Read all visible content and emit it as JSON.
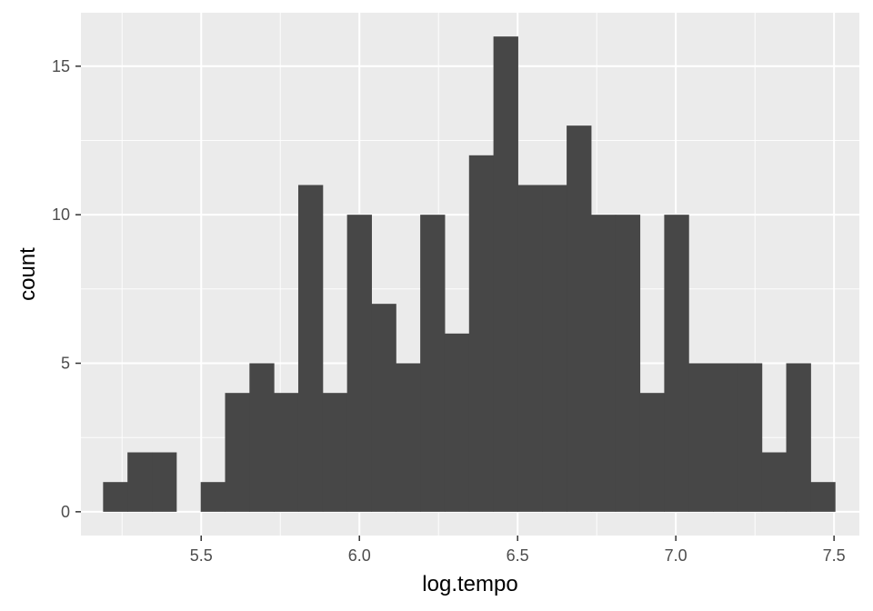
{
  "chart_data": {
    "type": "bar",
    "xlabel": "log.tempo",
    "ylabel": "count",
    "xlim": [
      5.12,
      7.58
    ],
    "ylim": [
      -0.8,
      16.8
    ],
    "x_ticks": [
      {
        "value": 5.5,
        "label": "5.5"
      },
      {
        "value": 6.0,
        "label": "6.0"
      },
      {
        "value": 6.5,
        "label": "6.5"
      },
      {
        "value": 7.0,
        "label": "7.0"
      },
      {
        "value": 7.5,
        "label": "7.5"
      }
    ],
    "y_ticks": [
      {
        "value": 0,
        "label": "0"
      },
      {
        "value": 5,
        "label": "5"
      },
      {
        "value": 10,
        "label": "10"
      },
      {
        "value": 15,
        "label": "15"
      }
    ],
    "bin_start": 5.19,
    "bin_width": 0.0771,
    "counts": [
      1,
      2,
      2,
      0,
      1,
      4,
      5,
      4,
      11,
      4,
      10,
      7,
      5,
      10,
      6,
      12,
      16,
      11,
      11,
      13,
      10,
      10,
      4,
      10,
      5,
      5,
      5,
      2,
      5,
      1
    ],
    "grid": true,
    "colors": {
      "panel": "#ebebeb",
      "grid_major": "#ffffff",
      "bar": "#474747",
      "tick_text": "#4d4d4d",
      "tick_mark": "#333333",
      "title_text": "#000000"
    }
  }
}
